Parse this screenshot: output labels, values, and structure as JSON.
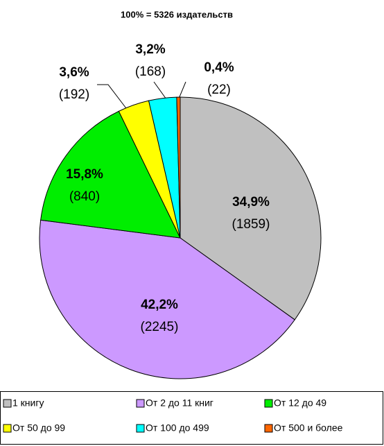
{
  "chart_data": {
    "type": "pie",
    "title": "100% = 5326 издательств",
    "categories": [
      "1 книгу",
      "От 2 до 11 книг",
      "От 12 до 49",
      "От 50 до 99",
      "От 100 до 499",
      "От 500 и более"
    ],
    "values": [
      34.9,
      42.2,
      15.8,
      3.6,
      3.2,
      0.4
    ],
    "value_labels": [
      "34,9%",
      "42,2%",
      "15,8%",
      "3,6%",
      "3,2%",
      "0,4%"
    ],
    "counts": [
      1859,
      2245,
      840,
      192,
      168,
      22
    ],
    "count_labels": [
      "(1859)",
      "(2245)",
      "(840)",
      "(192)",
      "(168)",
      "(22)"
    ],
    "colors": [
      "#c0c0c0",
      "#cc99ff",
      "#00ee00",
      "#ffff00",
      "#00ffff",
      "#ff6600"
    ]
  }
}
